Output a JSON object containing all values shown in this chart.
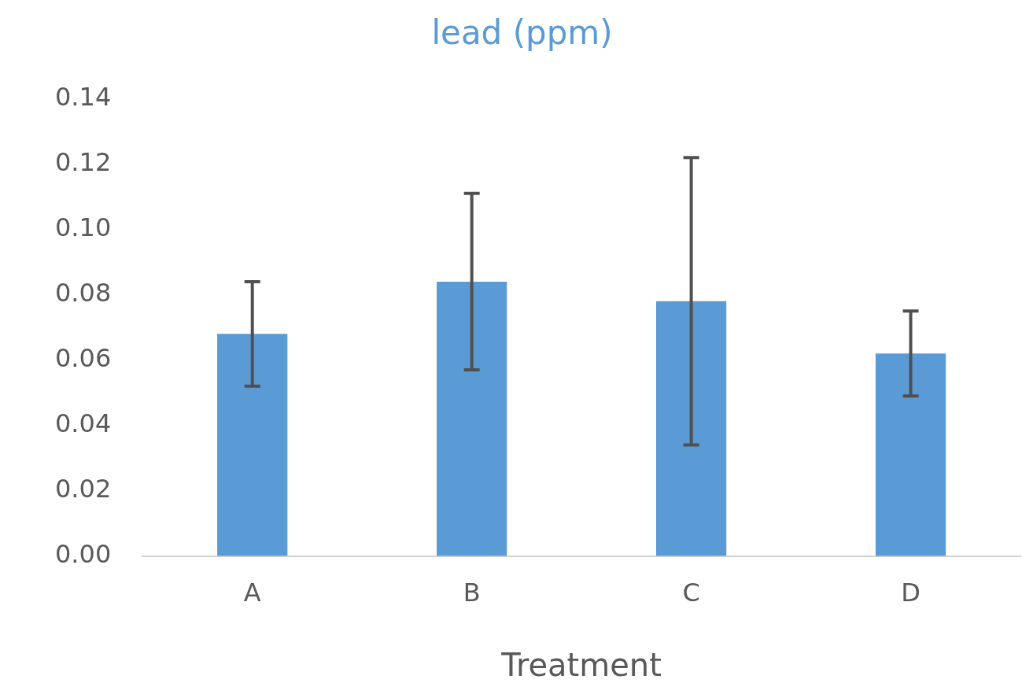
{
  "chart_data": {
    "type": "bar",
    "title": "lead (ppm)",
    "xlabel": "Treatment",
    "categories": [
      "A",
      "B",
      "C",
      "D"
    ],
    "values": [
      0.068,
      0.084,
      0.078,
      0.062
    ],
    "errors": [
      0.016,
      0.027,
      0.044,
      0.013
    ],
    "color": "#5b9bd5",
    "ylim": [
      0,
      0.14
    ],
    "yticks": [
      {
        "value": 0,
        "label": "0.00"
      },
      {
        "value": 0.02,
        "label": "0.02"
      },
      {
        "value": 0.04,
        "label": "0.04"
      },
      {
        "value": 0.06,
        "label": "0.06"
      },
      {
        "value": 0.08,
        "label": "0.08"
      },
      {
        "value": 0.1,
        "label": "0.10"
      },
      {
        "value": 0.12,
        "label": "0.12"
      },
      {
        "value": 0.14,
        "label": "0.14"
      }
    ],
    "grid": false,
    "legend": false
  }
}
